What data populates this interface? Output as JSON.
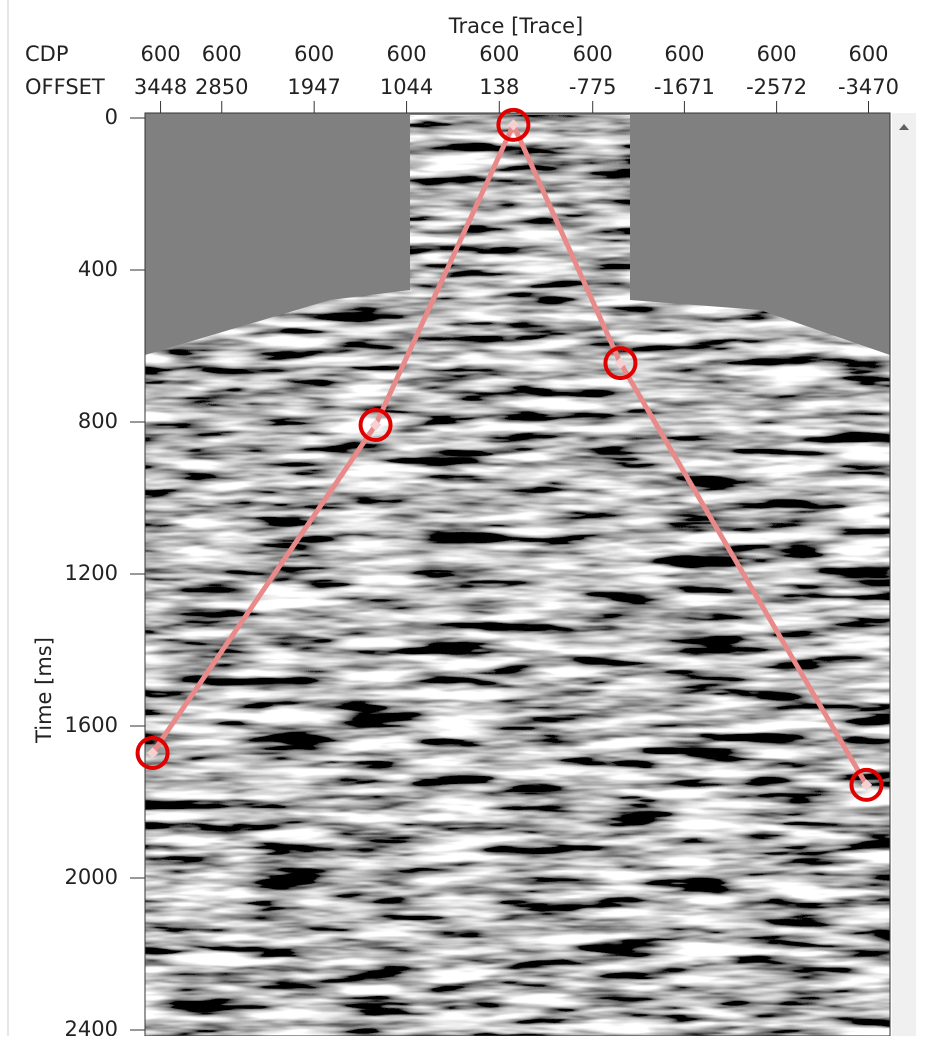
{
  "chart_data": {
    "type": "line",
    "xlabel": "Trace [Trace]",
    "ylabel": "Time [ms]",
    "row_headers": [
      "CDP",
      "OFFSET"
    ],
    "cdp": [
      600,
      600,
      600,
      600,
      600,
      600,
      600,
      600,
      600
    ],
    "xlim": [
      3600,
      -3680
    ],
    "xticks": [
      3448,
      2850,
      1947,
      1044,
      138,
      -775,
      -1671,
      -2572,
      -3470
    ],
    "ylim": [
      0,
      2400
    ],
    "yticks": [
      0,
      400,
      800,
      1200,
      1600,
      2000,
      2400
    ],
    "x": [
      3526,
      1347,
      0,
      -1046,
      -3450
    ],
    "values": [
      1671,
      808,
      18,
      645,
      1755
    ],
    "color": "#e88a8a",
    "marker_color": "#e00000"
  }
}
